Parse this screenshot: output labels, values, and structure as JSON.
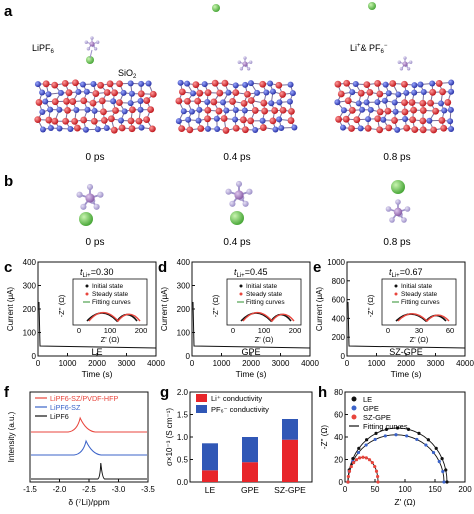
{
  "panels": {
    "a": {
      "label": "a",
      "species_labels": {
        "lipf6": "LiPF",
        "lipf6_sub": "6",
        "sio2": "SiO",
        "sio2_sub": "2",
        "li_pf6": "Li",
        "li_pf6_sup": "+",
        "li_pf6_amp": "& PF",
        "li_pf6_sub": "6",
        "li_pf6_sup2": "−"
      },
      "times": [
        "0 ps",
        "0.4 ps",
        "0.8 ps"
      ]
    },
    "b": {
      "label": "b",
      "times": [
        "0 ps",
        "0.4 ps",
        "0.8 ps"
      ]
    },
    "cde": [
      {
        "label": "c",
        "sample": "LE",
        "t_li": "=0.30",
        "yticks": [
          "0",
          "100",
          "200",
          "300",
          "400"
        ],
        "inset_x": [
          "0",
          "100",
          "200"
        ],
        "xticks": [
          "0",
          "1000",
          "2000",
          "3000",
          "4000"
        ]
      },
      {
        "label": "d",
        "sample": "GPE",
        "t_li": "=0.45",
        "yticks": [
          "0",
          "100",
          "200",
          "300",
          "400"
        ],
        "inset_x": [
          "0",
          "100",
          "200"
        ],
        "xticks": [
          "0",
          "1000",
          "2000",
          "3000",
          "4000"
        ]
      },
      {
        "label": "e",
        "sample": "SZ-GPE",
        "t_li": "=0.67",
        "yticks": [
          "0",
          "200",
          "400",
          "600",
          "800",
          "1000"
        ],
        "inset_x": [
          "0",
          "30",
          "60"
        ],
        "xticks": [
          "0",
          "1000",
          "2000",
          "3000",
          "4000"
        ]
      }
    ],
    "cde_common": {
      "ylabel": "Current (μA)",
      "xlabel": "Time (s)",
      "t_prefix": "t",
      "t_sub": "Li+",
      "inset_ylabel": "-Z'' (Ω)",
      "inset_xlabel": "Z' (Ω)",
      "legend": [
        "Initial state",
        "Steady state",
        "Fitting curves"
      ]
    },
    "f": {
      "label": "f",
      "ylabel": "Intensity (a.u.)",
      "xlabel": "δ (⁷Li)/ppm",
      "xticks": [
        "-1.5",
        "-2.0",
        "-2.5",
        "-3.0",
        "-3.5"
      ],
      "legend": [
        "LiPF6-SZ/PVDF-HFP",
        "LiPF6-SZ",
        "LiPF6"
      ],
      "colors": [
        "#e8453c",
        "#3b63c9",
        "#111111"
      ]
    },
    "g": {
      "label": "g",
      "ylabel": "σ×10⁻³ (S cm⁻¹)",
      "yticks": [
        "0.0",
        "0.5",
        "1.0",
        "1.5",
        "2.0"
      ],
      "legend": [
        "Li⁺ conductivity",
        "PF₆⁻ conductivity"
      ],
      "colors": [
        "#e8252a",
        "#3057b6"
      ]
    },
    "h": {
      "label": "h",
      "ylabel": "-Z'' (Ω)",
      "xlabel": "Z' (Ω)",
      "yticks": [
        "0",
        "20",
        "40",
        "60",
        "80"
      ],
      "xticks": [
        "0",
        "50",
        "100",
        "150",
        "200"
      ],
      "legend": [
        "LE",
        "GPE",
        "SZ-GPE",
        "Fitting curves"
      ],
      "colors": [
        "#111111",
        "#3b63c9",
        "#e8453c",
        "#111111"
      ]
    }
  },
  "chart_data": [
    {
      "type": "bar",
      "panel": "g",
      "categories": [
        "LE",
        "GPE",
        "SZ-GPE"
      ],
      "series": [
        {
          "name": "Li⁺ conductivity",
          "values": [
            0.26,
            0.44,
            0.94
          ]
        },
        {
          "name": "PF₆⁻ conductivity",
          "values": [
            0.6,
            0.56,
            0.46
          ]
        }
      ],
      "ylim": [
        0,
        2.0
      ],
      "stacked": true
    },
    {
      "type": "line",
      "panel": "f",
      "x_range": [
        -1.5,
        -3.5
      ],
      "series": [
        {
          "name": "LiPF6-SZ/PVDF-HFP",
          "peak_x": -2.35
        },
        {
          "name": "LiPF6-SZ",
          "peak_x": -2.45
        },
        {
          "name": "LiPF6",
          "peak_x": -2.7
        }
      ]
    },
    {
      "type": "scatter",
      "panel": "h",
      "xlim": [
        0,
        200
      ],
      "ylim": [
        0,
        80
      ],
      "series": [
        {
          "name": "LE",
          "semicircle": [
            5,
            170
          ],
          "height": 48
        },
        {
          "name": "GPE",
          "semicircle": [
            5,
            165
          ],
          "height": 42
        },
        {
          "name": "SZ-GPE",
          "semicircle": [
            5,
            55
          ],
          "height": 22
        }
      ]
    }
  ]
}
